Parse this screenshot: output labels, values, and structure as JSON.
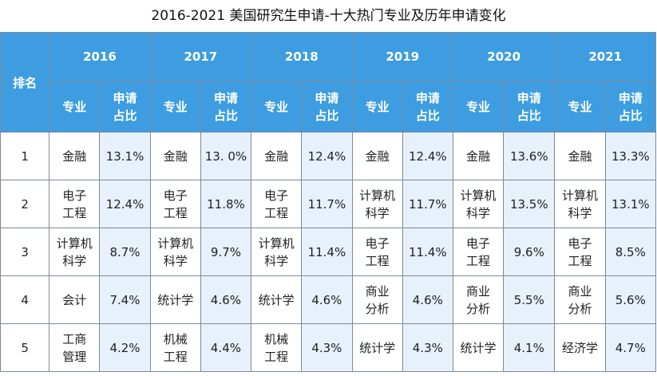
{
  "title": "2016-2021 美国研究生申请-十大热门专业及历年申请变化",
  "header": {
    "rank_label": "排名",
    "major_label": "专业",
    "share_label": [
      "申请",
      "占比"
    ],
    "years": [
      "2016",
      "2017",
      "2018",
      "2019",
      "2020",
      "2021"
    ]
  },
  "rows": [
    {
      "rank": "1",
      "cells": [
        {
          "major": [
            "金融"
          ],
          "share": "13.1%"
        },
        {
          "major": [
            "金融"
          ],
          "share": "13. 0%"
        },
        {
          "major": [
            "金融"
          ],
          "share": "12.4%"
        },
        {
          "major": [
            "金融"
          ],
          "share": "12.4%"
        },
        {
          "major": [
            "金融"
          ],
          "share": "13.6%"
        },
        {
          "major": [
            "金融"
          ],
          "share": "13.3%"
        }
      ]
    },
    {
      "rank": "2",
      "cells": [
        {
          "major": [
            "电子",
            "工程"
          ],
          "share": "12.4%"
        },
        {
          "major": [
            "电子",
            "工程"
          ],
          "share": "11.8%"
        },
        {
          "major": [
            "电子",
            "工程"
          ],
          "share": "11.7%"
        },
        {
          "major": [
            "计算机",
            "科学"
          ],
          "share": "11.7%"
        },
        {
          "major": [
            "计算机",
            "科学"
          ],
          "share": "13.5%"
        },
        {
          "major": [
            "计算机",
            "科学"
          ],
          "share": "13.1%"
        }
      ]
    },
    {
      "rank": "3",
      "cells": [
        {
          "major": [
            "计算机",
            "科学"
          ],
          "share": "8.7%"
        },
        {
          "major": [
            "计算机",
            "科学"
          ],
          "share": "9.7%"
        },
        {
          "major": [
            "计算机",
            "科学"
          ],
          "share": "11.4%"
        },
        {
          "major": [
            "电子",
            "工程"
          ],
          "share": "11.4%"
        },
        {
          "major": [
            "电子",
            "工程"
          ],
          "share": "9.6%"
        },
        {
          "major": [
            "电子",
            "工程"
          ],
          "share": "8.5%"
        }
      ]
    },
    {
      "rank": "4",
      "cells": [
        {
          "major": [
            "会计"
          ],
          "share": "7.4%"
        },
        {
          "major": [
            "统计学"
          ],
          "share": "4.6%"
        },
        {
          "major": [
            "统计学"
          ],
          "share": "4.6%"
        },
        {
          "major": [
            "商业",
            "分析"
          ],
          "share": "4.6%"
        },
        {
          "major": [
            "商业",
            "分析"
          ],
          "share": "5.5%"
        },
        {
          "major": [
            "商业",
            "分析"
          ],
          "share": "5.6%"
        }
      ]
    },
    {
      "rank": "5",
      "cells": [
        {
          "major": [
            "工商",
            "管理"
          ],
          "share": "4.2%"
        },
        {
          "major": [
            "机械",
            "工程"
          ],
          "share": "4.4%"
        },
        {
          "major": [
            "机械",
            "工程"
          ],
          "share": "4.3%"
        },
        {
          "major": [
            "统计学"
          ],
          "share": "4.3%"
        },
        {
          "major": [
            "统计学"
          ],
          "share": "4.1%"
        },
        {
          "major": [
            "经济学"
          ],
          "share": "4.7%"
        }
      ]
    }
  ]
}
